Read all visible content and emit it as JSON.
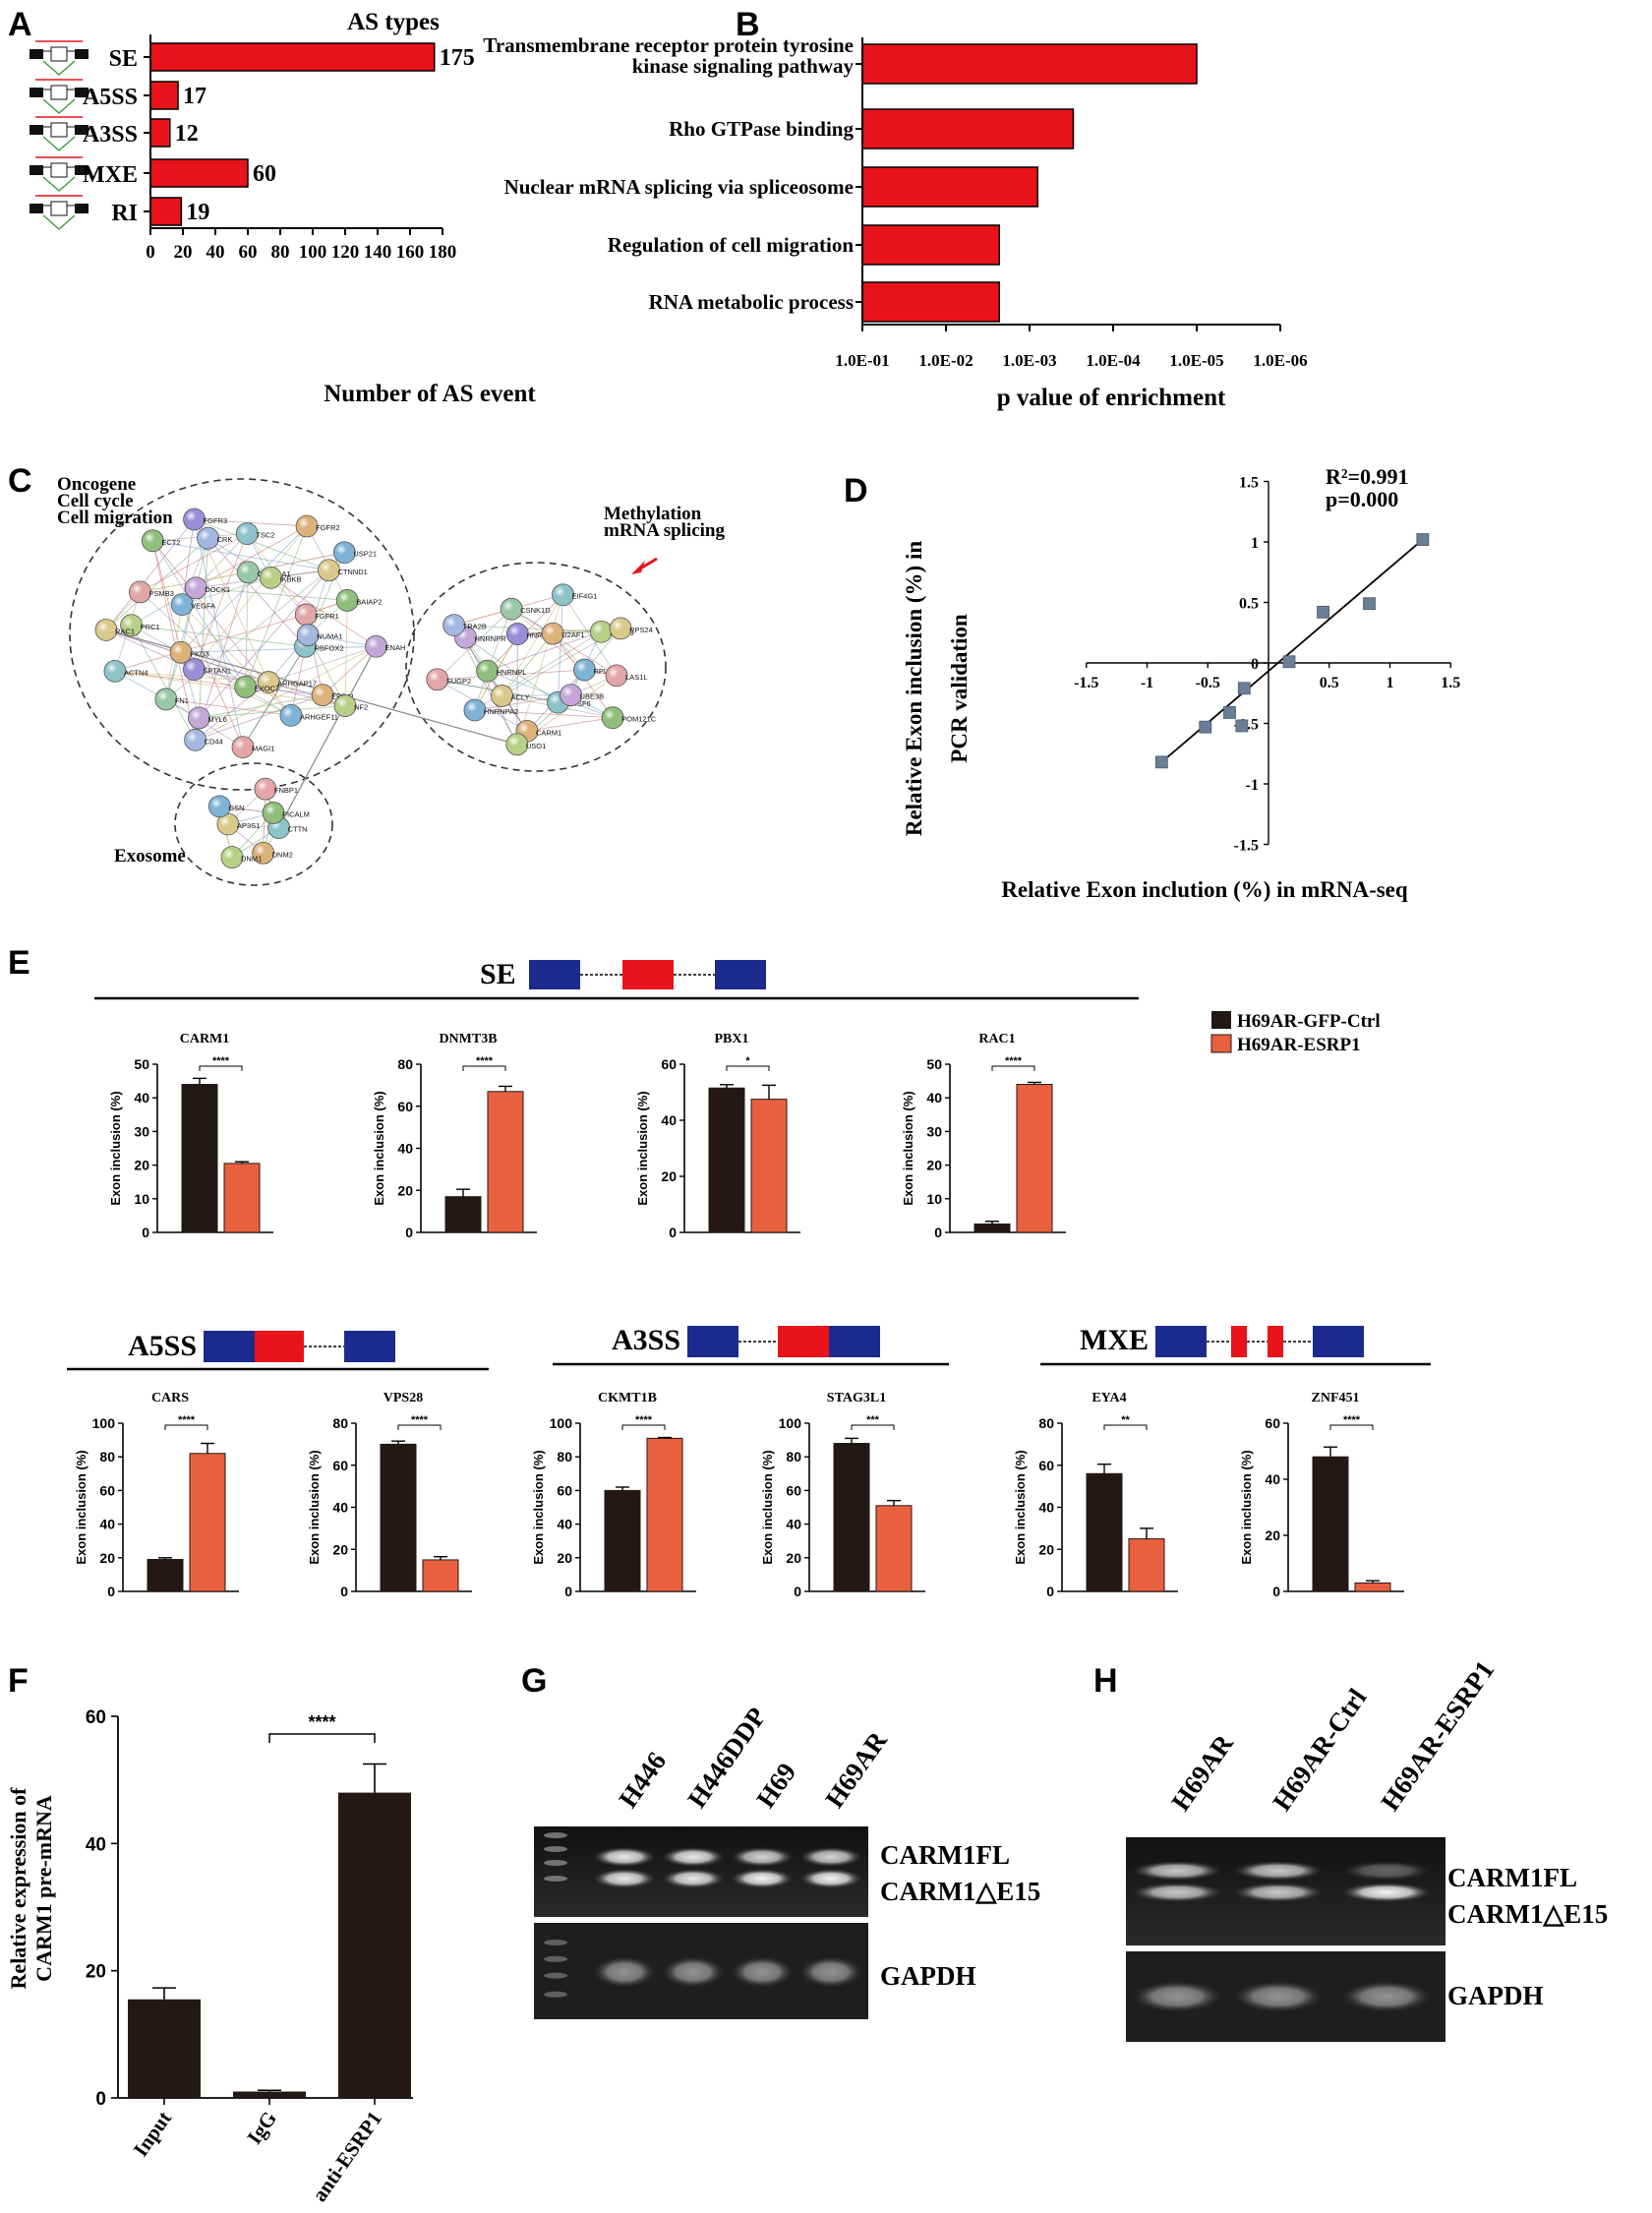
{
  "panel_letters": {
    "a": "A",
    "b": "B",
    "c": "C",
    "d": "D",
    "e": "E",
    "f": "F",
    "g": "G",
    "h": "H"
  },
  "colors": {
    "red": "#e8131b",
    "orange": "#e9603f",
    "dark": "#231815",
    "exon_blue": "#1b2a8c",
    "exon_red": "#e8131b",
    "point": "#6a7f95"
  },
  "chart_data": [
    {
      "id": "A",
      "type": "bar",
      "orientation": "horizontal",
      "title": "AS types",
      "categories": [
        "SE",
        "A5SS",
        "A3SS",
        "MXE",
        "RI"
      ],
      "values": [
        175,
        17,
        12,
        60,
        19
      ],
      "xlabel": "Number of AS event",
      "xlim": [
        0,
        180
      ],
      "xticks": [
        "0",
        "20",
        "40",
        "60",
        "80",
        "100",
        "120",
        "140",
        "160",
        "180"
      ]
    },
    {
      "id": "B",
      "type": "bar",
      "orientation": "horizontal",
      "categories": [
        "Transmembrane receptor protein tyrosine kinase signaling pathway",
        "Rho GTPase binding",
        "Nuclear mRNA splicing via spliceosome",
        "Regulation of cell migration",
        "RNA metabolic process"
      ],
      "category_lines": [
        [
          "Transmembrane receptor protein tyrosine",
          "kinase signaling pathway"
        ],
        [
          "Rho GTPase binding"
        ],
        [
          "Nuclear mRNA splicing via spliceosome"
        ],
        [
          "Regulation of cell migration"
        ],
        [
          "RNA metabolic process"
        ]
      ],
      "values": [
        1e-05,
        0.0003,
        0.0008,
        0.0023,
        0.0023
      ],
      "xscale": "log-reversed",
      "xlim": [
        0.1,
        1e-06
      ],
      "xticks": [
        "1.0E-01",
        "1.0E-02",
        "1.0E-03",
        "1.0E-04",
        "1.0E-05",
        "1.0E-06"
      ],
      "xlabel": "p value of enrichment"
    },
    {
      "id": "D",
      "type": "scatter",
      "x": [
        -0.88,
        -0.52,
        -0.32,
        -0.22,
        -0.2,
        0.17,
        0.45,
        0.83,
        1.27
      ],
      "y": [
        -0.82,
        -0.53,
        -0.41,
        -0.52,
        -0.21,
        0.01,
        0.42,
        0.49,
        1.02
      ],
      "fit_line": {
        "x": [
          -0.88,
          1.27
        ],
        "y": [
          -0.82,
          1.02
        ]
      },
      "annotations": [
        "R²=0.991",
        "p=0.000"
      ],
      "xlim": [
        -1.5,
        1.5
      ],
      "ylim": [
        -1.5,
        1.5
      ],
      "xticks": [
        "-1.5",
        "-1",
        "-0.5",
        "0",
        "0.5",
        "1",
        "1.5"
      ],
      "yticks": [
        "1.5",
        "1",
        "0.5",
        "0",
        "-0.5",
        "-1",
        "-1.5"
      ],
      "xlabel": "Relative Exon inclution (%) in mRNA-seq",
      "ylabel": [
        "Relative Exon inclusion (%) in",
        "PCR validation"
      ]
    },
    {
      "id": "E",
      "type": "bar",
      "legend": [
        "H69AR-GFP-Ctrl",
        "H69AR-ESRP1"
      ],
      "ylabel": "Exon inclusion (%)",
      "groups": [
        {
          "event": "SE",
          "genes": [
            {
              "name": "CARM1",
              "values": [
                44,
                20.5
              ],
              "errors": [
                1.8,
                0.5
              ],
              "ymax": 50,
              "yticks": [
                "0",
                "10",
                "20",
                "30",
                "40",
                "50"
              ],
              "sig": "****"
            },
            {
              "name": "DNMT3B",
              "values": [
                17,
                67
              ],
              "errors": [
                3.5,
                2.5
              ],
              "ymax": 80,
              "yticks": [
                "0",
                "20",
                "40",
                "60",
                "80"
              ],
              "sig": "****"
            },
            {
              "name": "PBX1",
              "values": [
                51.5,
                47.5
              ],
              "errors": [
                1.2,
                5
              ],
              "ymax": 60,
              "yticks": [
                "0",
                "20",
                "40",
                "60"
              ],
              "sig": "*"
            },
            {
              "name": "RAC1",
              "values": [
                2.5,
                44
              ],
              "errors": [
                0.8,
                0.6
              ],
              "ymax": 50,
              "yticks": [
                "0",
                "10",
                "20",
                "30",
                "40",
                "50"
              ],
              "sig": "****"
            }
          ]
        },
        {
          "event": "A5SS",
          "genes": [
            {
              "name": "CARS",
              "values": [
                19,
                82
              ],
              "errors": [
                1,
                6
              ],
              "ymax": 100,
              "yticks": [
                "0",
                "20",
                "40",
                "60",
                "80",
                "100"
              ],
              "sig": "****"
            },
            {
              "name": "VPS28",
              "values": [
                70,
                15
              ],
              "errors": [
                1.5,
                1.5
              ],
              "ymax": 80,
              "yticks": [
                "0",
                "20",
                "40",
                "60",
                "80"
              ],
              "sig": "****"
            }
          ]
        },
        {
          "event": "A3SS",
          "genes": [
            {
              "name": "CKMT1B",
              "values": [
                60,
                91
              ],
              "errors": [
                2,
                0.5
              ],
              "ymax": 100,
              "yticks": [
                "0",
                "20",
                "40",
                "60",
                "80",
                "100"
              ],
              "sig": "****"
            },
            {
              "name": "STAG3L1",
              "values": [
                88,
                51
              ],
              "errors": [
                3,
                3
              ],
              "ymax": 100,
              "yticks": [
                "0",
                "20",
                "40",
                "60",
                "80",
                "100"
              ],
              "sig": "***"
            }
          ]
        },
        {
          "event": "MXE",
          "genes": [
            {
              "name": "EYA4",
              "values": [
                56,
                25
              ],
              "errors": [
                4.5,
                5
              ],
              "ymax": 80,
              "yticks": [
                "0",
                "20",
                "40",
                "60",
                "80"
              ],
              "sig": "**"
            },
            {
              "name": "ZNF451",
              "values": [
                48,
                3
              ],
              "errors": [
                3.5,
                0.8
              ],
              "ymax": 60,
              "yticks": [
                "0",
                "20",
                "40",
                "60"
              ],
              "sig": "****"
            }
          ]
        }
      ]
    },
    {
      "id": "F",
      "type": "bar",
      "categories": [
        "Input",
        "IgG",
        "anti-ESRP1"
      ],
      "values": [
        15.5,
        1,
        48
      ],
      "errors": [
        1.8,
        0.2,
        4.5
      ],
      "ylim": [
        0,
        60
      ],
      "yticks": [
        "0",
        "20",
        "40",
        "60"
      ],
      "ylabel": [
        "Relative expression of",
        "CARM1 pre-mRNA"
      ],
      "sig": "****"
    }
  ],
  "panel_c": {
    "cluster_labels": {
      "left": [
        "Oncogene",
        "Cell cycle",
        "Cell migration"
      ],
      "right": [
        "Methylation",
        "mRNA splicing"
      ],
      "bottom": "Exosome"
    },
    "nodes_left": [
      "RBFOX2",
      "EPB41",
      "NF2",
      "ARHGAP17",
      "ARHGEF11",
      "MAGI1",
      "EXOC7",
      "MYL6",
      "CD44",
      "SPTAN1",
      "FN1",
      "ACTN4",
      "PKD3",
      "PRC1",
      "RAC1",
      "VEGFA",
      "PSMB3",
      "ECT2",
      "DOCK1",
      "CRK",
      "FGFR3",
      "CSNK1A1",
      "TSC2",
      "FGFR2",
      "IKBKB",
      "CTNND1",
      "USP21",
      "FGFR1",
      "BAIAP2",
      "ENAH",
      "NUMA1"
    ],
    "nodes_right": [
      "SRSF6",
      "CARM1",
      "USO1",
      "ACLY",
      "HNRNPA2",
      "SUGP2",
      "HNRNPL",
      "HNRNPR",
      "TRA2B",
      "HNRNPH3",
      "CSNK1D",
      "EIF4G1",
      "U2AF1",
      "AKAP9",
      "RPS24",
      "RPL23",
      "LAS1L",
      "POM121C",
      "UBE3B"
    ],
    "nodes_bottom": [
      "CTTN",
      "DNM2",
      "DNM1",
      "AP3S1",
      "GSN",
      "FNBP1",
      "PICALM"
    ]
  },
  "panel_g": {
    "lanes": [
      "H446",
      "H446DDP",
      "H69",
      "H69AR"
    ],
    "band_labels": [
      "CARM1FL",
      "CARM1△E15",
      "GAPDH"
    ]
  },
  "panel_h": {
    "lanes": [
      "H69AR",
      "H69AR-Ctrl",
      "H69AR-ESRP1"
    ],
    "band_labels": [
      "CARM1FL",
      "CARM1△E15",
      "GAPDH"
    ]
  }
}
